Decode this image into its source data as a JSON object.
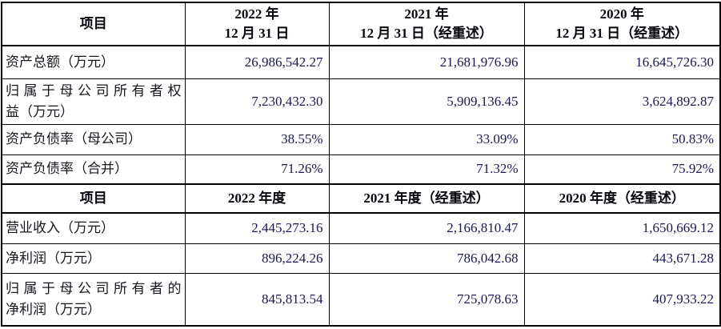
{
  "table": {
    "colors": {
      "border": "#000000",
      "label_text": "#16161e",
      "number_text": "#1b1950",
      "header_text": "#06060e",
      "background": "#ffffff"
    },
    "section1": {
      "header": {
        "item": "项目",
        "col_2022_line1": "2022 年",
        "col_2022_line2": "12 月 31 日",
        "col_2021_line1": "2021 年",
        "col_2021_line2": "12 月 31 日（经重述）",
        "col_2020_line1": "2020 年",
        "col_2020_line2": "12 月 31 日（经重述）"
      },
      "rows": [
        {
          "label": "资产总额（万元）",
          "v2022": "26,986,542.27",
          "v2021": "21,681,976.96",
          "v2020": "16,645,726.30"
        },
        {
          "label_line1": "归属于母公司所有者权",
          "label_line2": "益（万元）",
          "v2022": "7,230,432.30",
          "v2021": "5,909,136.45",
          "v2020": "3,624,892.87"
        },
        {
          "label": "资产负债率（母公司）",
          "v2022": "38.55%",
          "v2021": "33.09%",
          "v2020": "50.83%"
        },
        {
          "label": "资产负债率（合并）",
          "v2022": "71.26%",
          "v2021": "71.32%",
          "v2020": "75.92%"
        }
      ]
    },
    "section2": {
      "header": {
        "item": "项目",
        "col_2022": "2022 年度",
        "col_2021": "2021 年度（经重述）",
        "col_2020": "2020 年度（经重述）"
      },
      "rows": [
        {
          "label": "营业收入（万元）",
          "v2022": "2,445,273.16",
          "v2021": "2,166,810.47",
          "v2020": "1,650,669.12"
        },
        {
          "label": "净利润（万元）",
          "v2022": "896,224.26",
          "v2021": "786,042.68",
          "v2020": "443,671.28"
        },
        {
          "label_line1": "归属于母公司所有者的",
          "label_line2": "净利润（万元）",
          "v2022": "845,813.54",
          "v2021": "725,078.63",
          "v2020": "407,933.22"
        }
      ]
    }
  }
}
